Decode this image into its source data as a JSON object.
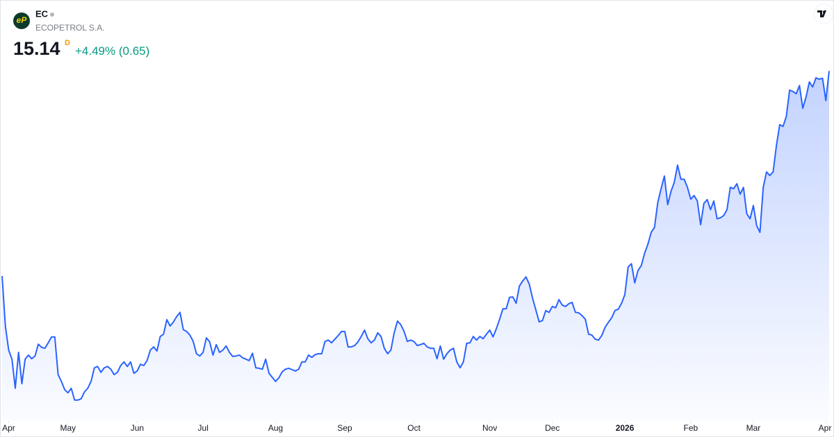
{
  "header": {
    "logo_text": "eP",
    "ticker": "EC",
    "name": "ECOPETROL S.A.",
    "interval": "D",
    "price": 15.14,
    "change_percent": {
      "value": 4.49,
      "label": "+4.49%"
    },
    "change": {
      "value": 0.65,
      "label": "(0.65)"
    }
  },
  "chart_data": {
    "type": "area",
    "xlim": [
      0,
      251
    ],
    "ylim": [
      7.5,
      16
    ],
    "xticks": [
      {
        "value": 2,
        "label": "Apr"
      },
      {
        "value": 20,
        "label": "May"
      },
      {
        "value": 41,
        "label": "Jun"
      },
      {
        "value": 61,
        "label": "Jul"
      },
      {
        "value": 83,
        "label": "Aug"
      },
      {
        "value": 104,
        "label": "Sep"
      },
      {
        "value": 125,
        "label": "Oct"
      },
      {
        "value": 148,
        "label": "Nov"
      },
      {
        "value": 167,
        "label": "Dec"
      },
      {
        "value": 189,
        "label": "2026"
      },
      {
        "value": 209,
        "label": "Feb"
      },
      {
        "value": 228,
        "label": "Mar"
      },
      {
        "value": 250,
        "label": "Apr"
      }
    ],
    "series": [
      {
        "color": "#2962ff",
        "values": [
          10.63,
          9.53,
          9.0,
          8.8,
          8.16,
          8.95,
          8.26,
          8.8,
          8.89,
          8.81,
          8.87,
          9.13,
          9.06,
          9.04,
          9.16,
          9.29,
          9.29,
          8.46,
          8.31,
          8.13,
          8.06,
          8.16,
          7.9,
          7.9,
          7.93,
          8.08,
          8.16,
          8.31,
          8.61,
          8.64,
          8.51,
          8.61,
          8.64,
          8.58,
          8.46,
          8.51,
          8.66,
          8.74,
          8.64,
          8.74,
          8.49,
          8.54,
          8.69,
          8.66,
          8.77,
          9.0,
          9.07,
          8.98,
          9.3,
          9.35,
          9.67,
          9.53,
          9.62,
          9.74,
          9.83,
          9.45,
          9.41,
          9.33,
          9.19,
          8.92,
          8.87,
          8.95,
          9.27,
          9.18,
          8.89,
          9.12,
          8.95,
          9.0,
          9.09,
          8.95,
          8.86,
          8.87,
          8.89,
          8.83,
          8.8,
          8.77,
          8.93,
          8.61,
          8.6,
          8.58,
          8.8,
          8.49,
          8.4,
          8.31,
          8.39,
          8.52,
          8.58,
          8.6,
          8.57,
          8.54,
          8.58,
          8.74,
          8.74,
          8.89,
          8.84,
          8.9,
          8.92,
          8.92,
          9.19,
          9.22,
          9.16,
          9.24,
          9.32,
          9.41,
          9.41,
          9.07,
          9.07,
          9.1,
          9.18,
          9.3,
          9.44,
          9.25,
          9.16,
          9.22,
          9.38,
          9.3,
          9.04,
          8.92,
          9.0,
          9.38,
          9.64,
          9.56,
          9.41,
          9.19,
          9.22,
          9.19,
          9.1,
          9.12,
          9.15,
          9.07,
          9.04,
          9.04,
          8.81,
          9.09,
          8.8,
          8.92,
          9.0,
          9.04,
          8.74,
          8.61,
          8.74,
          9.15,
          9.16,
          9.3,
          9.22,
          9.3,
          9.25,
          9.35,
          9.44,
          9.29,
          9.47,
          9.68,
          9.91,
          9.91,
          10.16,
          10.17,
          10.03,
          10.41,
          10.52,
          10.61,
          10.45,
          10.14,
          9.88,
          9.62,
          9.65,
          9.87,
          9.83,
          9.96,
          9.93,
          10.11,
          9.99,
          9.96,
          10.02,
          10.05,
          9.83,
          9.82,
          9.76,
          9.68,
          9.35,
          9.33,
          9.24,
          9.22,
          9.32,
          9.5,
          9.61,
          9.71,
          9.87,
          9.9,
          10.03,
          10.22,
          10.83,
          10.9,
          10.48,
          10.75,
          10.86,
          11.13,
          11.33,
          11.59,
          11.7,
          12.25,
          12.55,
          12.83,
          12.2,
          12.49,
          12.69,
          13.07,
          12.76,
          12.76,
          12.58,
          12.32,
          12.4,
          12.28,
          11.76,
          12.23,
          12.31,
          12.09,
          12.28,
          11.89,
          11.91,
          11.96,
          12.09,
          12.58,
          12.55,
          12.66,
          12.43,
          12.58,
          12.0,
          11.89,
          12.18,
          11.74,
          11.59,
          12.58,
          12.92,
          12.84,
          12.92,
          13.5,
          13.96,
          13.92,
          14.14,
          14.72,
          14.69,
          14.64,
          14.82,
          14.32,
          14.57,
          14.9,
          14.79,
          14.99,
          14.96,
          14.98,
          14.49,
          15.14
        ]
      }
    ]
  }
}
